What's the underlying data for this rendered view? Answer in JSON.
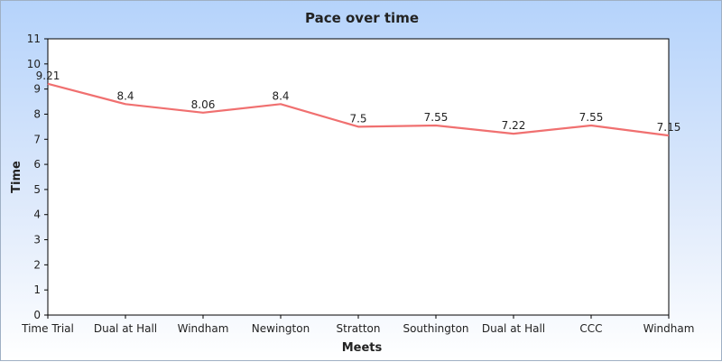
{
  "chart_data": {
    "type": "line",
    "title": "Pace over time",
    "xlabel": "Meets",
    "ylabel": "Time",
    "categories": [
      "Time Trial",
      "Dual at Hall",
      "Windham",
      "Newington",
      "Stratton",
      "Southington",
      "Dual at Hall",
      "CCC",
      "Windham"
    ],
    "series": [
      {
        "values": [
          9.21,
          8.4,
          8.06,
          8.4,
          7.5,
          7.55,
          7.22,
          7.55,
          7.15
        ],
        "labels": [
          "9.21",
          "8.4",
          "8.06",
          "8.4",
          "7.5",
          "7.55",
          "7.22",
          "7.55",
          "7.15"
        ],
        "color": "#f07070"
      }
    ],
    "ylim": [
      0,
      11
    ],
    "yticks": [
      "0",
      "1",
      "2",
      "3",
      "4",
      "5",
      "6",
      "7",
      "8",
      "9",
      "10",
      "11"
    ],
    "grid": false,
    "legend": "none"
  }
}
